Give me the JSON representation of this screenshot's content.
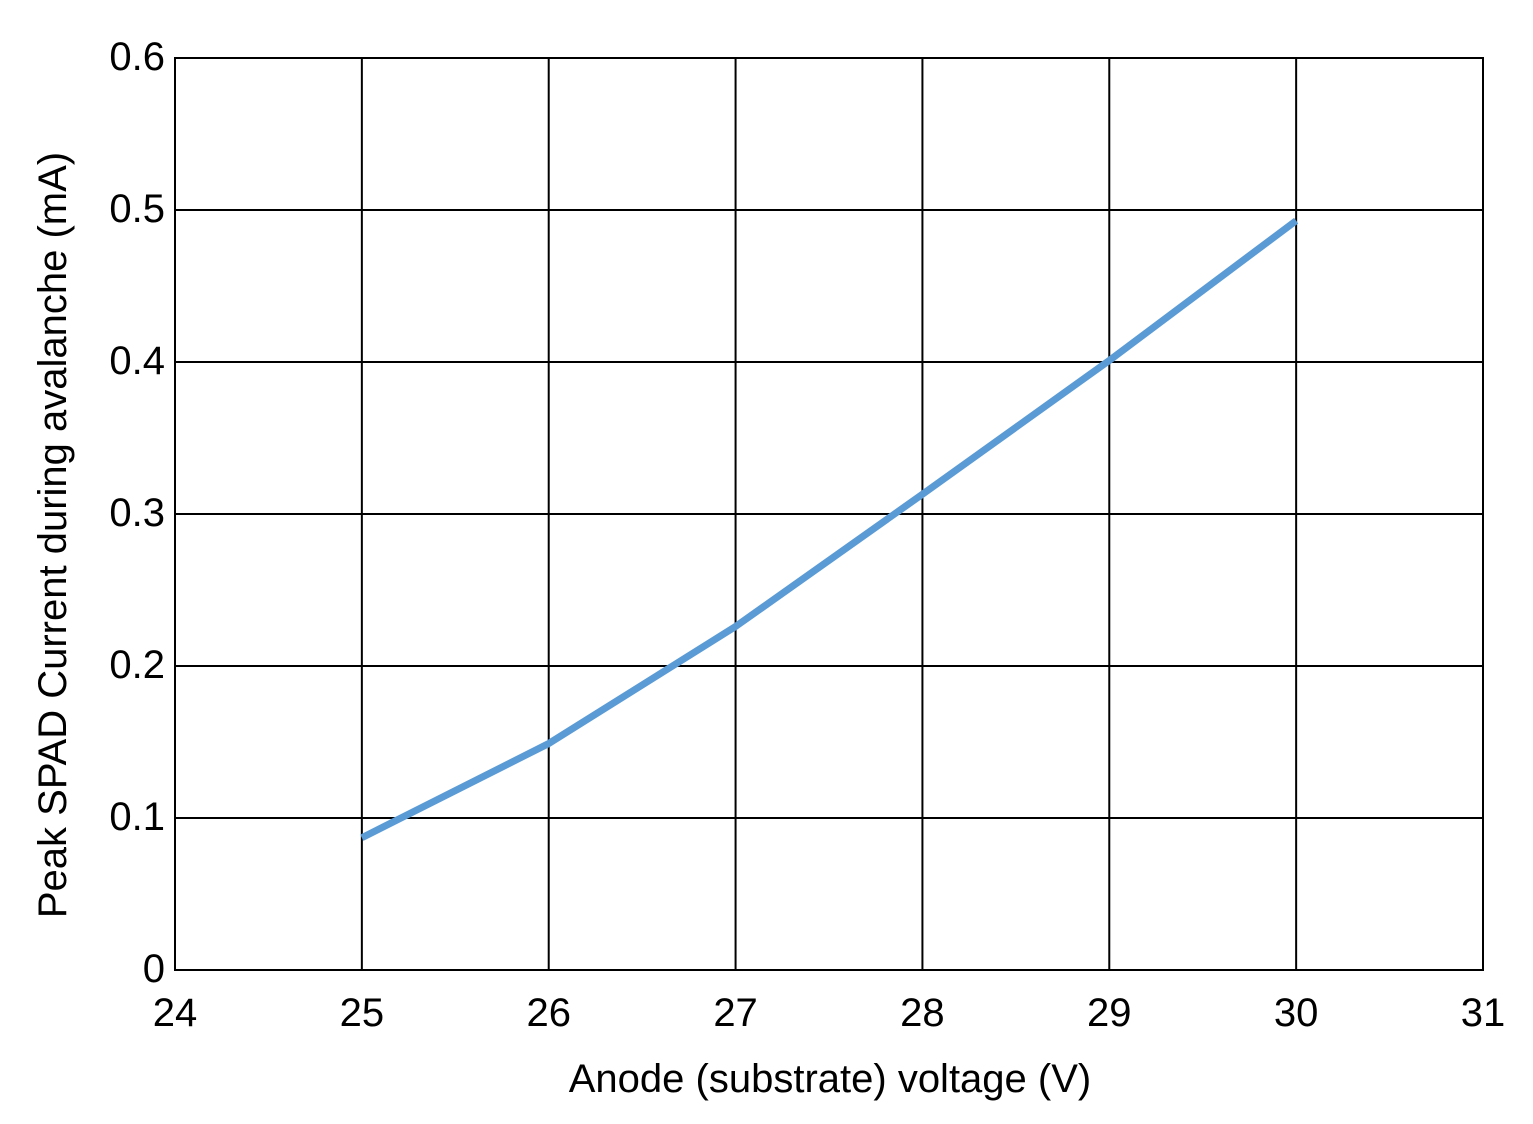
{
  "chart_data": {
    "type": "line",
    "x_label": "Anode (substrate) voltage (V)",
    "y_label": "Peak SPAD Current during avalanche (mA)",
    "x": [
      25,
      26,
      27,
      28,
      29,
      30
    ],
    "series": [
      {
        "color": "#5b9bd5",
        "values": [
          0.087,
          0.149,
          0.226,
          0.313,
          0.401,
          0.493
        ]
      }
    ],
    "xlim": [
      24,
      31
    ],
    "xticks": [
      24,
      25,
      26,
      27,
      28,
      29,
      30,
      31
    ],
    "ylim": [
      0,
      0.6
    ],
    "yticks": [
      0,
      0.1,
      0.2,
      0.3,
      0.4,
      0.5,
      0.6
    ],
    "grid": true
  }
}
